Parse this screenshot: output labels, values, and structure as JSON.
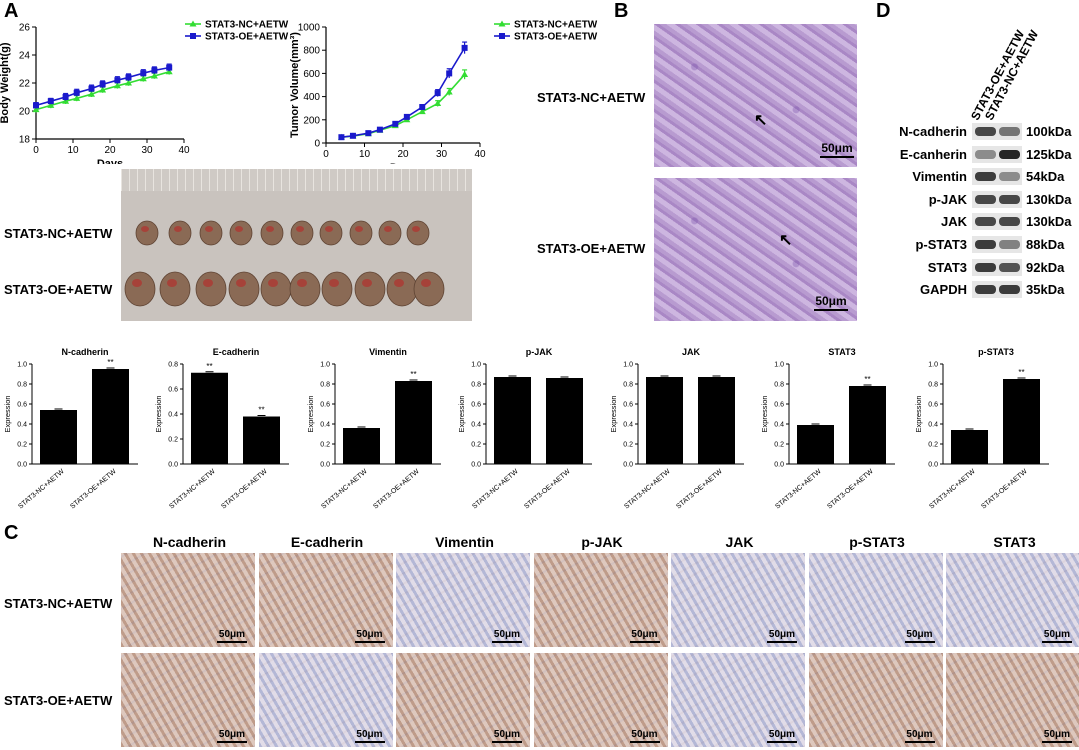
{
  "panels": {
    "a": "A",
    "b": "B",
    "c": "C",
    "d": "D"
  },
  "groups": {
    "nc": "STAT3-NC+AETW",
    "oe": "STAT3-OE+AETW"
  },
  "colors": {
    "nc": "#33dd33",
    "oe": "#1a1acc",
    "bar": "#000000"
  },
  "scale_label": "50μm",
  "chart_data": [
    {
      "type": "line",
      "xlabel": "Days",
      "ylabel": "Body Weight(g)",
      "xlim": [
        0,
        40
      ],
      "ylim": [
        18,
        26
      ],
      "xticks": [
        0,
        10,
        20,
        30,
        40
      ],
      "yticks": [
        18,
        20,
        22,
        24,
        26
      ],
      "legend": "top-right",
      "series": [
        {
          "name": "STAT3-NC+AETW",
          "x": [
            0,
            4,
            8,
            11,
            15,
            18,
            22,
            25,
            29,
            32,
            36
          ],
          "y": [
            20.1,
            20.4,
            20.7,
            20.9,
            21.2,
            21.5,
            21.8,
            22.0,
            22.3,
            22.5,
            22.8
          ],
          "err": [
            0.2,
            0.2,
            0.2,
            0.2,
            0.2,
            0.2,
            0.2,
            0.2,
            0.2,
            0.2,
            0.2
          ]
        },
        {
          "name": "STAT3-OE+AETW",
          "x": [
            0,
            4,
            8,
            11,
            15,
            18,
            22,
            25,
            29,
            32,
            36
          ],
          "y": [
            20.4,
            20.7,
            21.0,
            21.3,
            21.6,
            21.9,
            22.2,
            22.4,
            22.7,
            22.9,
            23.1
          ],
          "err": [
            0.2,
            0.2,
            0.25,
            0.25,
            0.25,
            0.25,
            0.25,
            0.25,
            0.25,
            0.25,
            0.25
          ]
        }
      ]
    },
    {
      "type": "line",
      "xlabel": "Days",
      "ylabel": "Tumor Volume(mm³)",
      "xlim": [
        0,
        40
      ],
      "ylim": [
        0,
        1000
      ],
      "xticks": [
        0,
        10,
        20,
        30,
        40
      ],
      "yticks": [
        0,
        200,
        400,
        600,
        800,
        1000
      ],
      "legend": "top-right",
      "series": [
        {
          "name": "STAT3-NC+AETW",
          "x": [
            4,
            7,
            11,
            14,
            18,
            21,
            25,
            29,
            32,
            36
          ],
          "y": [
            50,
            60,
            80,
            110,
            150,
            200,
            270,
            340,
            440,
            590
          ],
          "err": [
            5,
            5,
            8,
            10,
            12,
            15,
            20,
            25,
            30,
            40
          ]
        },
        {
          "name": "STAT3-OE+AETW",
          "x": [
            4,
            7,
            11,
            14,
            18,
            21,
            25,
            29,
            32,
            36
          ],
          "y": [
            50,
            62,
            85,
            115,
            165,
            225,
            310,
            430,
            600,
            820
          ],
          "err": [
            5,
            5,
            8,
            10,
            12,
            15,
            20,
            30,
            40,
            50
          ]
        }
      ]
    },
    {
      "type": "bar",
      "title": "N-cadherin",
      "ylabel": "Expression",
      "categories": [
        "STAT3-NC+AETW",
        "STAT3-OE+AETW"
      ],
      "values": [
        0.54,
        0.95
      ],
      "ylim": [
        0,
        1.0
      ],
      "yticks": [
        "0.0",
        "0.2",
        "0.4",
        "0.6",
        "0.8",
        "1.0"
      ],
      "sig": [
        "",
        "**"
      ]
    },
    {
      "type": "bar",
      "title": "E-cadherin",
      "ylabel": "Expression",
      "categories": [
        "STAT3-NC+AETW",
        "STAT3-OE+AETW"
      ],
      "values": [
        0.73,
        0.38
      ],
      "ylim": [
        0,
        0.8
      ],
      "yticks": [
        "0.0",
        "0.2",
        "0.4",
        "0.6",
        "0.8"
      ],
      "sig": [
        "**",
        "**"
      ]
    },
    {
      "type": "bar",
      "title": "Vimentin",
      "ylabel": "Expression",
      "categories": [
        "STAT3-NC+AETW",
        "STAT3-OE+AETW"
      ],
      "values": [
        0.36,
        0.83
      ],
      "ylim": [
        0,
        1.0
      ],
      "yticks": [
        "0.0",
        "0.2",
        "0.4",
        "0.6",
        "0.8",
        "1.0"
      ],
      "sig": [
        "",
        "**"
      ]
    },
    {
      "type": "bar",
      "title": "p-JAK",
      "ylabel": "Expression",
      "categories": [
        "STAT3-NC+AETW",
        "STAT3-OE+AETW"
      ],
      "values": [
        0.87,
        0.86
      ],
      "ylim": [
        0,
        1.0
      ],
      "yticks": [
        "0.0",
        "0.2",
        "0.4",
        "0.6",
        "0.8",
        "1.0"
      ],
      "sig": [
        "",
        ""
      ]
    },
    {
      "type": "bar",
      "title": "JAK",
      "ylabel": "Expression",
      "categories": [
        "STAT3-NC+AETW",
        "STAT3-OE+AETW"
      ],
      "values": [
        0.87,
        0.87
      ],
      "ylim": [
        0,
        1.0
      ],
      "yticks": [
        "0.0",
        "0.2",
        "0.4",
        "0.6",
        "0.8",
        "1.0"
      ],
      "sig": [
        "",
        ""
      ]
    },
    {
      "type": "bar",
      "title": "STAT3",
      "ylabel": "Expression",
      "categories": [
        "STAT3-NC+AETW",
        "STAT3-OE+AETW"
      ],
      "values": [
        0.39,
        0.78
      ],
      "ylim": [
        0,
        1.0
      ],
      "yticks": [
        "0.0",
        "0.2",
        "0.4",
        "0.6",
        "0.8",
        "1.0"
      ],
      "sig": [
        "",
        "**"
      ]
    },
    {
      "type": "bar",
      "title": "p-STAT3",
      "ylabel": "Expression",
      "categories": [
        "STAT3-NC+AETW",
        "STAT3-OE+AETW"
      ],
      "values": [
        0.34,
        0.85
      ],
      "ylim": [
        0,
        1.0
      ],
      "yticks": [
        "0.0",
        "0.2",
        "0.4",
        "0.6",
        "0.8",
        "1.0"
      ],
      "sig": [
        "",
        "**"
      ]
    }
  ],
  "ihc_columns": [
    "N-cadherin",
    "E-cadherin",
    "Vimentin",
    "p-JAK",
    "JAK",
    "p-STAT3",
    "STAT3"
  ],
  "blot": {
    "lanes": [
      "STAT3-OE+AETW",
      "STAT3-NC+AETW"
    ],
    "rows": [
      {
        "name": "N-cadherin",
        "kda": "100kDa",
        "i": [
          0.8,
          0.6
        ]
      },
      {
        "name": "E-canherin",
        "kda": "125kDa",
        "i": [
          0.5,
          0.95
        ]
      },
      {
        "name": "Vimentin",
        "kda": "54kDa",
        "i": [
          0.85,
          0.5
        ]
      },
      {
        "name": "p-JAK",
        "kda": "130kDa",
        "i": [
          0.8,
          0.8
        ]
      },
      {
        "name": "JAK",
        "kda": "130kDa",
        "i": [
          0.8,
          0.8
        ]
      },
      {
        "name": "p-STAT3",
        "kda": "88kDa",
        "i": [
          0.85,
          0.55
        ]
      },
      {
        "name": "STAT3",
        "kda": "92kDa",
        "i": [
          0.85,
          0.75
        ]
      },
      {
        "name": "GAPDH",
        "kda": "35kDa",
        "i": [
          0.85,
          0.85
        ]
      }
    ]
  }
}
